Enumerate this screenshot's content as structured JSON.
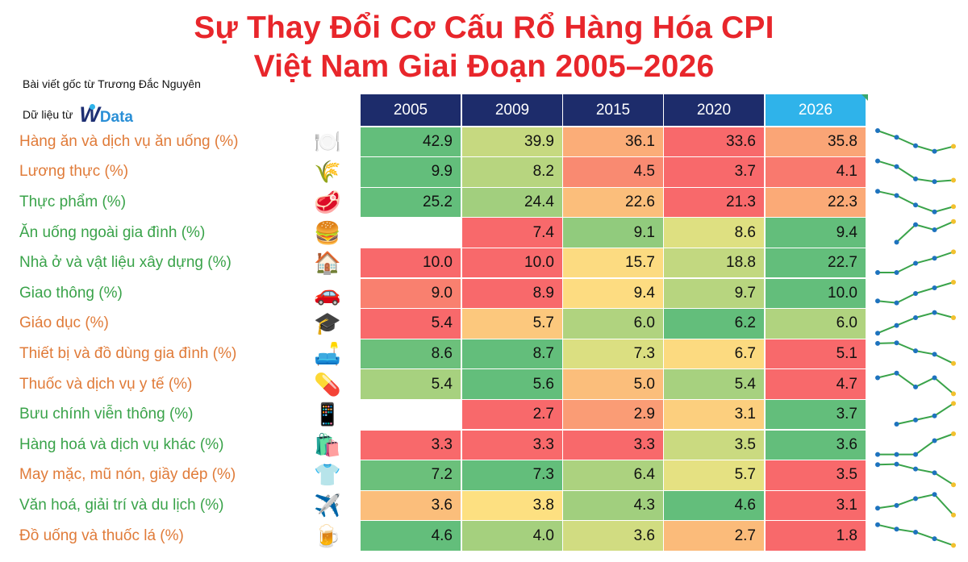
{
  "title_line1": "Sự Thay Đổi Cơ Cấu Rổ Hàng Hóa CPI",
  "title_line2": "Việt Nam Giai Đoạn 2005–2026",
  "credit": "Bài viết gốc từ Trương Đắc Nguyên",
  "source_prefix": "Dữ liệu từ",
  "source_logo": {
    "w": "W",
    "data": "Data"
  },
  "colors": {
    "title": "#e8262b",
    "header": "#1d2c6b",
    "header_highlight": "#2fb3ea",
    "label_orange": "#e07b39",
    "label_green": "#3aa34a",
    "spark_line": "#3aa34a",
    "spark_point": "#1e73be",
    "spark_end_point": "#f2c12e",
    "scale_low": "#f8696b",
    "scale_mid": "#fde883",
    "scale_high": "#63be7b"
  },
  "chart_data": {
    "type": "table",
    "title": "Sự Thay Đổi Cơ Cấu Rổ Hàng Hóa CPI Việt Nam Giai Đoạn 2005–2026",
    "columns": [
      "2005",
      "2009",
      "2015",
      "2020",
      "2026"
    ],
    "highlight_column": "2026",
    "color_scale": "per-row red-yellow-green",
    "sparklines": true,
    "rows": [
      {
        "label": "Hàng ăn và dịch vụ ăn uống (%)",
        "icon": "plate-cutlery-icon",
        "glyph": "🍽️",
        "label_color": "orange",
        "values": [
          42.9,
          39.9,
          36.1,
          33.6,
          35.8
        ]
      },
      {
        "label": "Lương thực (%)",
        "icon": "rice-plant-icon",
        "glyph": "🌾",
        "label_color": "orange",
        "values": [
          9.9,
          8.2,
          4.5,
          3.7,
          4.1
        ]
      },
      {
        "label": "Thực phẩm (%)",
        "icon": "meat-icon",
        "glyph": "🥩",
        "label_color": "green",
        "values": [
          25.2,
          24.4,
          22.6,
          21.3,
          22.3
        ]
      },
      {
        "label": "Ăn uống ngoài gia đình (%)",
        "icon": "burger-icon",
        "glyph": "🍔",
        "label_color": "green",
        "values": [
          null,
          7.4,
          9.1,
          8.6,
          9.4
        ]
      },
      {
        "label": "Nhà ở và vật liệu xây dựng (%)",
        "icon": "house-icon",
        "glyph": "🏠",
        "label_color": "green",
        "values": [
          10.0,
          10.0,
          15.7,
          18.8,
          22.7
        ]
      },
      {
        "label": "Giao thông (%)",
        "icon": "car-icon",
        "glyph": "🚗",
        "label_color": "green",
        "values": [
          9.0,
          8.9,
          9.4,
          9.7,
          10.0
        ]
      },
      {
        "label": "Giáo dục (%)",
        "icon": "graduation-cap-icon",
        "glyph": "🎓",
        "label_color": "orange",
        "values": [
          5.4,
          5.7,
          6.0,
          6.2,
          6.0
        ]
      },
      {
        "label": "Thiết bị và đồ dùng gia đình (%)",
        "icon": "sofa-icon",
        "glyph": "🛋️",
        "label_color": "orange",
        "values": [
          8.6,
          8.7,
          7.3,
          6.7,
          5.1
        ]
      },
      {
        "label": "Thuốc và dịch vụ y tế (%)",
        "icon": "pill-icon",
        "glyph": "💊",
        "label_color": "orange",
        "values": [
          5.4,
          5.6,
          5.0,
          5.4,
          4.7
        ]
      },
      {
        "label": "Bưu chính viễn thông (%)",
        "icon": "smartphone-icon",
        "glyph": "📱",
        "label_color": "green",
        "values": [
          null,
          2.7,
          2.9,
          3.1,
          3.7
        ]
      },
      {
        "label": "Hàng hoá và dịch vụ khác (%)",
        "icon": "shopping-bags-icon",
        "glyph": "🛍️",
        "label_color": "green",
        "values": [
          3.3,
          3.3,
          3.3,
          3.5,
          3.6
        ]
      },
      {
        "label": "May mặc, mũ nón, giầy dép (%)",
        "icon": "shirt-icon",
        "glyph": "👕",
        "label_color": "orange",
        "values": [
          7.2,
          7.3,
          6.4,
          5.7,
          3.5
        ]
      },
      {
        "label": "Văn hoá, giải trí và du lịch (%)",
        "icon": "airplane-icon",
        "glyph": "✈️",
        "label_color": "green",
        "values": [
          3.6,
          3.8,
          4.3,
          4.6,
          3.1
        ]
      },
      {
        "label": "Đồ uống và thuốc lá (%)",
        "icon": "beer-mug-icon",
        "glyph": "🍺",
        "label_color": "orange",
        "values": [
          4.6,
          4.0,
          3.6,
          2.7,
          1.8
        ]
      }
    ]
  }
}
